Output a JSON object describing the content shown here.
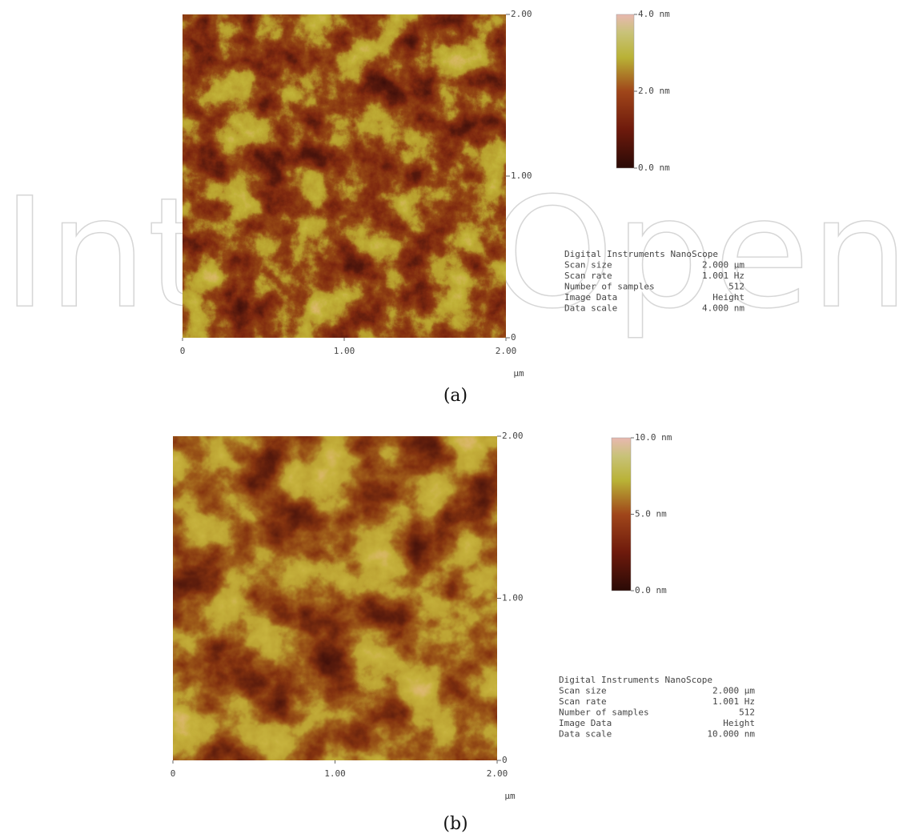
{
  "watermark": "IntechOpen",
  "panels": [
    {
      "caption": "(a)",
      "y_ticks": [
        "2.00",
        "1.00",
        "0"
      ],
      "x_ticks": [
        "0",
        "1.00",
        "2.00"
      ],
      "x_unit": "µm",
      "color_scale": [
        "4.0 nm",
        "2.0 nm",
        "0.0 nm"
      ],
      "info_title": "Digital Instruments NanoScope",
      "info": [
        [
          "Scan size",
          "2.000 µm"
        ],
        [
          "Scan rate",
          "1.001 Hz"
        ],
        [
          "Number of samples",
          "512"
        ],
        [
          "Image Data",
          "Height"
        ],
        [
          "Data scale",
          "4.000 nm"
        ]
      ]
    },
    {
      "caption": "(b)",
      "y_ticks": [
        "2.00",
        "1.00",
        "0"
      ],
      "x_ticks": [
        "0",
        "1.00",
        "2.00"
      ],
      "x_unit": "µm",
      "color_scale": [
        "10.0 nm",
        "5.0 nm",
        "0.0 nm"
      ],
      "info_title": "Digital Instruments NanoScope",
      "info": [
        [
          "Scan size",
          "2.000 µm"
        ],
        [
          "Scan rate",
          "1.001 Hz"
        ],
        [
          "Number of samples",
          "512"
        ],
        [
          "Image Data",
          "Height"
        ],
        [
          "Data scale",
          "10.000 nm"
        ]
      ]
    }
  ]
}
